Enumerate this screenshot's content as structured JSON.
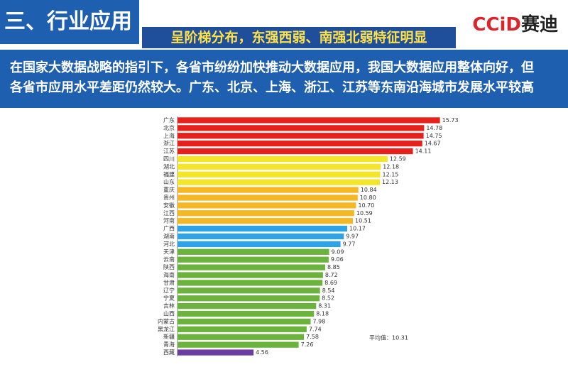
{
  "header": {
    "title": "三、行业应用",
    "subtitle": "呈阶梯分布，东强西弱、南强北弱特征明显",
    "logo_a": "CCiD",
    "logo_b": "赛迪",
    "text": [
      "在国家大数据战略的指引下，各省市纷纷加快推动大数据应用，我国大数据应用整体向好，但",
      "各省市应用水平差距仍然较大。广东、北京、上海、浙江、江苏等东南沿海城市发展水平较高"
    ]
  },
  "chart_data": {
    "type": "hbar",
    "categories": [
      "广东",
      "北京",
      "上海",
      "浙江",
      "江苏",
      "四川",
      "湖北",
      "福建",
      "山东",
      "重庆",
      "贵州",
      "安徽",
      "江西",
      "河南",
      "广西",
      "湖南",
      "河北",
      "天津",
      "云南",
      "陕西",
      "海南",
      "甘肃",
      "辽宁",
      "宁夏",
      "吉林",
      "山西",
      "内蒙古",
      "黑龙江",
      "新疆",
      "青海",
      "西藏"
    ],
    "values": [
      15.73,
      14.78,
      14.75,
      14.67,
      14.11,
      12.59,
      12.18,
      12.15,
      12.13,
      10.84,
      10.8,
      10.7,
      10.59,
      10.51,
      10.17,
      9.97,
      9.77,
      9.09,
      9.06,
      8.85,
      8.72,
      8.69,
      8.54,
      8.52,
      8.31,
      8.18,
      7.98,
      7.74,
      7.58,
      7.26,
      4.56
    ],
    "value_labels": [
      "15.73",
      "14.78",
      "14.75",
      "14.67",
      "14.11",
      "12.59",
      "12.18",
      "12.15",
      "12.13",
      "10.84",
      "10.80",
      "10.70",
      "10.59",
      "10.51",
      "10.17",
      "9.97",
      "9.77",
      "9.09",
      "9.06",
      "8.85",
      "8.72",
      "8.69",
      "8.54",
      "8.52",
      "8.31",
      "8.18",
      "7.98",
      "7.74",
      "7.58",
      "7.26",
      "4.56"
    ],
    "colors": [
      "#e8201c",
      "#e8201c",
      "#e8201c",
      "#e8201c",
      "#e8201c",
      "#f2e52a",
      "#f2e52a",
      "#f2e52a",
      "#f2e52a",
      "#f5b724",
      "#f5b724",
      "#f5b724",
      "#f5b724",
      "#f5b724",
      "#2fa3e6",
      "#2fa3e6",
      "#2fa3e6",
      "#6cb33e",
      "#6cb33e",
      "#6cb33e",
      "#6cb33e",
      "#6cb33e",
      "#6cb33e",
      "#6cb33e",
      "#6cb33e",
      "#6cb33e",
      "#6cb33e",
      "#6cb33e",
      "#6cb33e",
      "#6cb33e",
      "#6a3ea1"
    ],
    "xlim": [
      0,
      16
    ],
    "annotation": "平均值：10.31"
  }
}
